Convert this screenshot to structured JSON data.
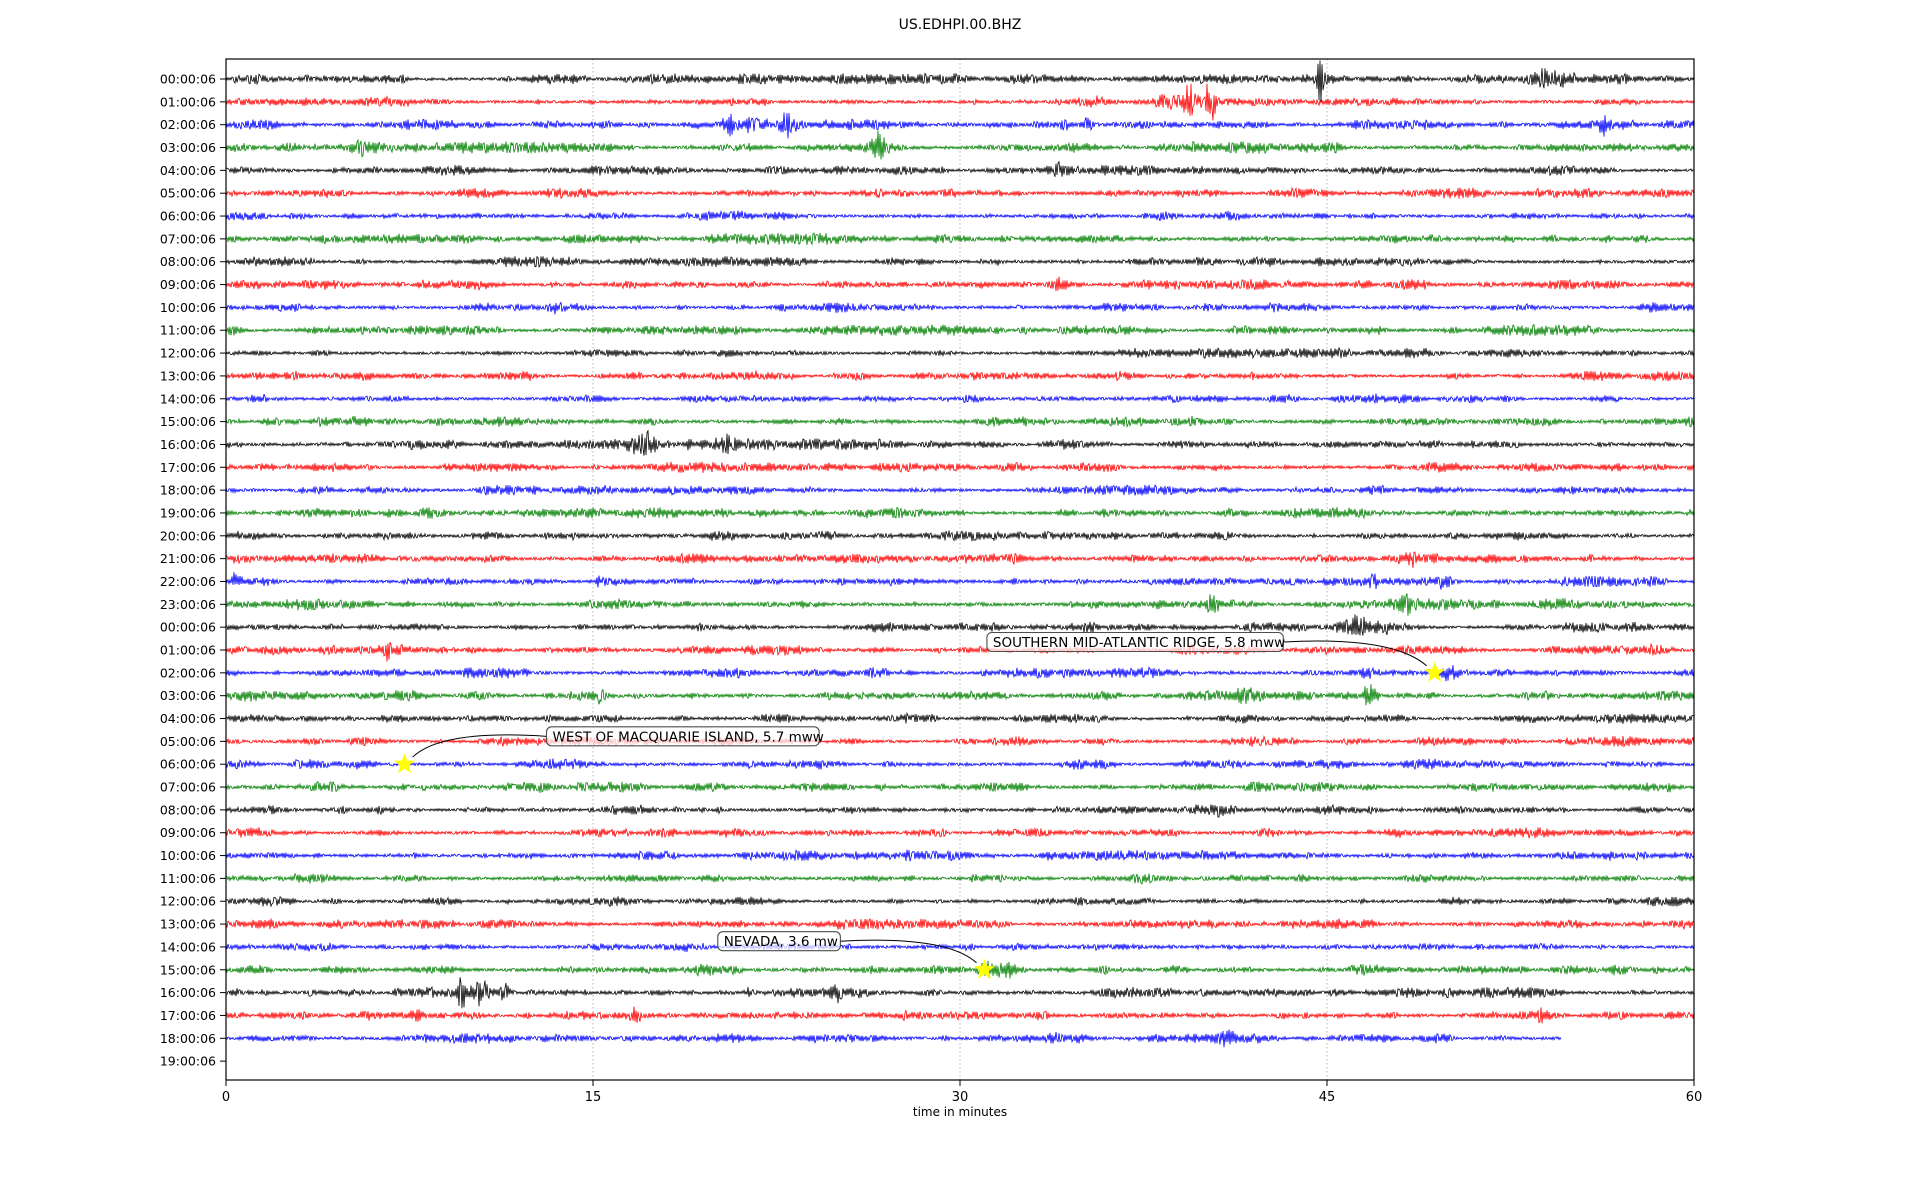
{
  "title": "US.EDHPI.00.BHZ",
  "xlabel": "time in minutes",
  "colors": {
    "trace_cycle": [
      "#000000",
      "#ff0000",
      "#0000ff",
      "#008000"
    ],
    "grid": "#b5b5b5",
    "spine": "#000000",
    "star_fill": "#ffff00",
    "annotation_border": "#4d4d4d",
    "annotation_fill_alpha": "rgba(255,255,255,0.72)",
    "text": "#000000"
  },
  "chart_data": {
    "type": "line",
    "title": "US.EDHPI.00.BHZ",
    "xlabel": "time in minutes",
    "x_ticks": [
      0,
      15,
      30,
      45,
      60
    ],
    "x_range": [
      0,
      60
    ],
    "grid_minutes": [
      15,
      30,
      45
    ],
    "grid_style": "dotted",
    "row_labels": [
      "00:00:06",
      "01:00:06",
      "02:00:06",
      "03:00:06",
      "04:00:06",
      "05:00:06",
      "06:00:06",
      "07:00:06",
      "08:00:06",
      "09:00:06",
      "10:00:06",
      "11:00:06",
      "12:00:06",
      "13:00:06",
      "14:00:06",
      "15:00:06",
      "16:00:06",
      "17:00:06",
      "18:00:06",
      "19:00:06",
      "20:00:06",
      "21:00:06",
      "22:00:06",
      "23:00:06",
      "00:00:06",
      "01:00:06",
      "02:00:06",
      "03:00:06",
      "04:00:06",
      "05:00:06",
      "06:00:06",
      "07:00:06",
      "08:00:06",
      "09:00:06",
      "10:00:06",
      "11:00:06",
      "12:00:06",
      "13:00:06",
      "14:00:06",
      "15:00:06",
      "16:00:06",
      "17:00:06",
      "18:00:06",
      "19:00:06"
    ],
    "traces": [
      {
        "label": "00:00:06",
        "color": "#000000",
        "amp": 2.8,
        "end": 60,
        "events": [
          [
            44.7,
            14,
            0.2
          ],
          [
            46.8,
            4,
            0.7
          ],
          [
            53.8,
            6,
            0.3
          ],
          [
            54.4,
            5,
            1.2
          ],
          [
            29.5,
            2,
            1.0
          ]
        ]
      },
      {
        "label": "01:00:06",
        "color": "#ff0000",
        "amp": 2.8,
        "end": 60,
        "events": [
          [
            35.6,
            3,
            1.2
          ],
          [
            38.6,
            6,
            1.4
          ],
          [
            39.4,
            10,
            0.25
          ],
          [
            40.2,
            12,
            0.35
          ]
        ]
      },
      {
        "label": "02:00:06",
        "color": "#0000ff",
        "amp": 2.8,
        "end": 60,
        "events": [
          [
            20.5,
            13,
            0.3
          ],
          [
            21.3,
            5,
            1.0
          ],
          [
            22.9,
            7,
            0.5
          ],
          [
            34.3,
            5,
            0.6
          ],
          [
            35.2,
            14,
            0.3
          ],
          [
            56.3,
            12,
            0.3
          ],
          [
            57.2,
            6,
            1.0
          ]
        ]
      },
      {
        "label": "03:00:06",
        "color": "#008000",
        "amp": 3.1,
        "end": 60,
        "events": [
          [
            5.5,
            4,
            0.4
          ],
          [
            20.4,
            4,
            0.7
          ],
          [
            26.6,
            8,
            0.35
          ],
          [
            27.2,
            4,
            0.8
          ]
        ]
      },
      {
        "label": "04:00:06",
        "color": "#000000",
        "amp": 2.7,
        "end": 60,
        "events": [
          [
            34.0,
            2.5,
            0.8
          ]
        ]
      },
      {
        "label": "05:00:06",
        "color": "#ff0000",
        "amp": 2.8,
        "end": 60,
        "events": []
      },
      {
        "label": "06:00:06",
        "color": "#0000ff",
        "amp": 2.7,
        "end": 60,
        "events": []
      },
      {
        "label": "07:00:06",
        "color": "#008000",
        "amp": 3.0,
        "end": 60,
        "events": []
      },
      {
        "label": "08:00:06",
        "color": "#000000",
        "amp": 2.8,
        "end": 60,
        "events": []
      },
      {
        "label": "09:00:06",
        "color": "#ff0000",
        "amp": 2.8,
        "end": 60,
        "events": [
          [
            34.1,
            6,
            0.35
          ]
        ]
      },
      {
        "label": "10:00:06",
        "color": "#0000ff",
        "amp": 2.7,
        "end": 60,
        "events": [
          [
            13.5,
            2.5,
            0.5
          ]
        ]
      },
      {
        "label": "11:00:06",
        "color": "#008000",
        "amp": 2.9,
        "end": 60,
        "events": []
      },
      {
        "label": "12:00:06",
        "color": "#000000",
        "amp": 2.6,
        "end": 60,
        "events": []
      },
      {
        "label": "13:00:06",
        "color": "#ff0000",
        "amp": 2.7,
        "end": 60,
        "events": []
      },
      {
        "label": "14:00:06",
        "color": "#0000ff",
        "amp": 2.7,
        "end": 60,
        "events": []
      },
      {
        "label": "15:00:06",
        "color": "#008000",
        "amp": 3.0,
        "end": 60,
        "events": []
      },
      {
        "label": "16:00:06",
        "color": "#000000",
        "amp": 2.8,
        "end": 60,
        "events": [
          [
            17.0,
            5,
            0.8
          ],
          [
            18.9,
            11,
            0.2
          ],
          [
            19.5,
            8,
            0.25
          ],
          [
            20.5,
            15,
            0.25
          ],
          [
            19.5,
            3,
            4
          ]
        ]
      },
      {
        "label": "17:00:06",
        "color": "#ff0000",
        "amp": 2.8,
        "end": 60,
        "events": []
      },
      {
        "label": "18:00:06",
        "color": "#0000ff",
        "amp": 2.7,
        "end": 60,
        "events": []
      },
      {
        "label": "19:00:06",
        "color": "#008000",
        "amp": 2.9,
        "end": 60,
        "events": []
      },
      {
        "label": "20:00:06",
        "color": "#000000",
        "amp": 2.7,
        "end": 60,
        "events": []
      },
      {
        "label": "21:00:06",
        "color": "#ff0000",
        "amp": 2.9,
        "end": 60,
        "events": [
          [
            41.8,
            4,
            0.3
          ],
          [
            48.5,
            5,
            0.35
          ],
          [
            55.7,
            6,
            0.3
          ],
          [
            57.7,
            3,
            0.3
          ]
        ]
      },
      {
        "label": "22:00:06",
        "color": "#0000ff",
        "amp": 2.8,
        "end": 60,
        "events": [
          [
            0.4,
            5,
            0.3
          ],
          [
            15.2,
            4,
            0.3
          ],
          [
            46.9,
            4,
            0.5
          ],
          [
            49.9,
            4.5,
            0.6
          ]
        ]
      },
      {
        "label": "23:00:06",
        "color": "#008000",
        "amp": 3.0,
        "end": 60,
        "events": [
          [
            40.3,
            4.5,
            0.3
          ],
          [
            44.6,
            4,
            0.25
          ],
          [
            48.2,
            3.5,
            0.4
          ],
          [
            54.8,
            4,
            0.5
          ]
        ]
      },
      {
        "label": "00:00:06",
        "color": "#000000",
        "amp": 2.7,
        "end": 60,
        "events": [
          [
            46.3,
            4,
            0.9
          ],
          [
            47.2,
            6,
            0.5
          ]
        ]
      },
      {
        "label": "01:00:06",
        "color": "#ff0000",
        "amp": 2.9,
        "end": 60,
        "events": [
          [
            6.7,
            6,
            0.25
          ],
          [
            11.1,
            6,
            0.25
          ]
        ]
      },
      {
        "label": "02:00:06",
        "color": "#0000ff",
        "amp": 2.8,
        "end": 60,
        "events": [
          [
            46.9,
            3,
            0.5
          ],
          [
            50.0,
            3.5,
            0.7
          ]
        ]
      },
      {
        "label": "03:00:06",
        "color": "#008000",
        "amp": 3.0,
        "end": 60,
        "events": [
          [
            15.3,
            4,
            0.4
          ],
          [
            19.0,
            4.5,
            0.3
          ],
          [
            41.5,
            3.5,
            0.9
          ],
          [
            46.7,
            12,
            0.3
          ]
        ]
      },
      {
        "label": "04:00:06",
        "color": "#000000",
        "amp": 2.7,
        "end": 60,
        "events": []
      },
      {
        "label": "05:00:06",
        "color": "#ff0000",
        "amp": 2.8,
        "end": 60,
        "events": []
      },
      {
        "label": "06:00:06",
        "color": "#0000ff",
        "amp": 2.8,
        "end": 60,
        "events": []
      },
      {
        "label": "07:00:06",
        "color": "#008000",
        "amp": 3.0,
        "end": 60,
        "events": []
      },
      {
        "label": "08:00:06",
        "color": "#000000",
        "amp": 2.7,
        "end": 60,
        "events": [
          [
            40.8,
            2.5,
            0.6
          ]
        ]
      },
      {
        "label": "09:00:06",
        "color": "#ff0000",
        "amp": 2.8,
        "end": 60,
        "events": []
      },
      {
        "label": "10:00:06",
        "color": "#0000ff",
        "amp": 2.7,
        "end": 60,
        "events": [
          [
            28.0,
            2.5,
            0.5
          ]
        ]
      },
      {
        "label": "11:00:06",
        "color": "#008000",
        "amp": 2.9,
        "end": 60,
        "events": []
      },
      {
        "label": "12:00:06",
        "color": "#000000",
        "amp": 2.7,
        "end": 60,
        "events": []
      },
      {
        "label": "13:00:06",
        "color": "#ff0000",
        "amp": 2.8,
        "end": 60,
        "events": []
      },
      {
        "label": "14:00:06",
        "color": "#0000ff",
        "amp": 2.7,
        "end": 60,
        "events": []
      },
      {
        "label": "15:00:06",
        "color": "#008000",
        "amp": 3.0,
        "end": 60,
        "events": [
          [
            32.1,
            12,
            0.45
          ],
          [
            31.4,
            4,
            0.8
          ]
        ]
      },
      {
        "label": "16:00:06",
        "color": "#000000",
        "amp": 2.9,
        "end": 60,
        "events": [
          [
            9.6,
            18,
            0.18
          ],
          [
            10.4,
            7,
            0.5
          ],
          [
            11.4,
            6,
            0.3
          ],
          [
            12.6,
            4,
            0.3
          ],
          [
            13.8,
            4,
            0.25
          ],
          [
            14.7,
            3.5,
            0.25
          ],
          [
            16.1,
            4,
            0.3
          ],
          [
            19.0,
            3.5,
            0.3
          ],
          [
            21.4,
            4,
            0.4
          ],
          [
            25.0,
            3,
            0.3
          ]
        ]
      },
      {
        "label": "17:00:06",
        "color": "#ff0000",
        "amp": 2.9,
        "end": 60,
        "events": [
          [
            7.9,
            5,
            0.35
          ],
          [
            16.7,
            5,
            0.3
          ],
          [
            27.7,
            3.5,
            0.3
          ],
          [
            36.8,
            3,
            1.5
          ],
          [
            40.6,
            3.5,
            0.4
          ],
          [
            53.7,
            4,
            0.3
          ]
        ]
      },
      {
        "label": "18:00:06",
        "color": "#0000ff",
        "amp": 2.8,
        "end": 54.6,
        "events": [
          [
            34.6,
            4,
            1.2
          ],
          [
            41.0,
            4,
            0.4
          ],
          [
            47.5,
            3.5,
            0.5
          ]
        ]
      }
    ],
    "annotations": [
      {
        "text": "SOUTHERN MID-ATLANTIC RIDGE, 5.8 mww",
        "star_row": 26,
        "star_minute": 49.4,
        "box_row": 24.65,
        "box_left_minute": 31.1,
        "connect_side": "right"
      },
      {
        "text": "WEST OF MACQUARIE ISLAND, 5.7 mww",
        "star_row": 30,
        "star_minute": 7.3,
        "box_row": 28.78,
        "box_left_minute": 13.1,
        "connect_side": "left"
      },
      {
        "text": "NEVADA, 3.6 mw",
        "star_row": 39,
        "star_minute": 31.0,
        "box_row": 37.75,
        "box_left_minute": 20.1,
        "connect_side": "right"
      }
    ]
  }
}
